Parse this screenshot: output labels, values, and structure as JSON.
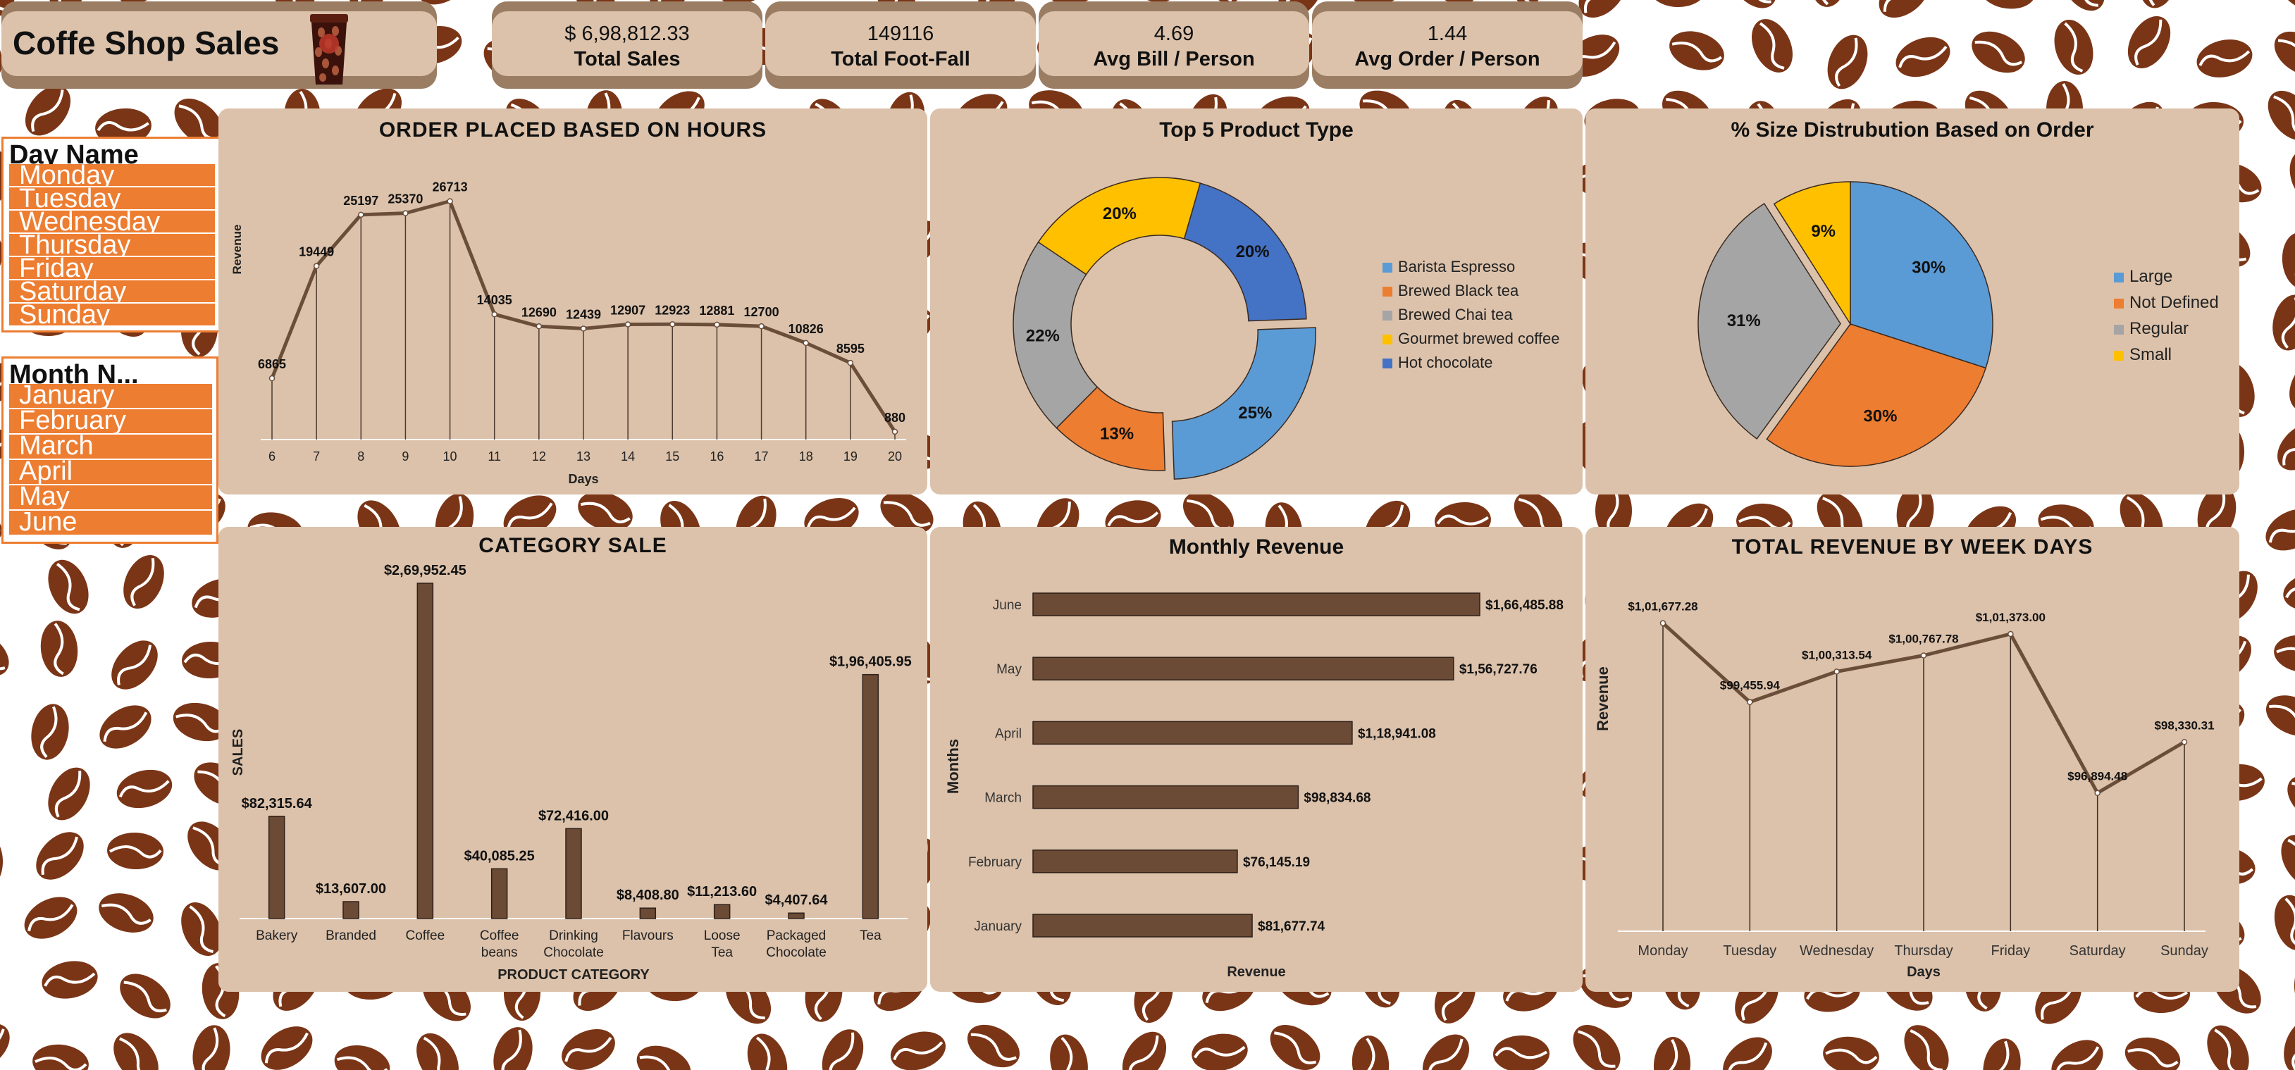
{
  "header": {
    "title": "Coffe Shop Sales"
  },
  "kpis": [
    {
      "value": "$ 6,98,812.33",
      "label": "Total Sales"
    },
    {
      "value": "149116",
      "label": "Total Foot-Fall"
    },
    {
      "value": "4.69",
      "label": "Avg Bill / Person"
    },
    {
      "value": "1.44",
      "label": "Avg Order / Person"
    }
  ],
  "slicers": {
    "day": {
      "header": "Day Name",
      "items": [
        "Monday",
        "Tuesday",
        "Wednesday",
        "Thursday",
        "Friday",
        "Saturday",
        "Sunday"
      ]
    },
    "month": {
      "header": "Month N...",
      "items": [
        "January",
        "February",
        "March",
        "April",
        "May",
        "June"
      ]
    }
  },
  "colors": {
    "accent": "#ed7d31",
    "panel": "#dcc2ab",
    "bean": "#7a3517",
    "line": "#6b4e3a",
    "bar": "#6b4b36"
  },
  "chart_data": [
    {
      "type": "line",
      "title": "ORDER PLACED BASED ON HOURS",
      "xlabel": "Days",
      "ylabel": "Revenue",
      "x": [
        "6",
        "7",
        "8",
        "9",
        "10",
        "11",
        "12",
        "13",
        "14",
        "15",
        "16",
        "17",
        "18",
        "19",
        "20"
      ],
      "values": [
        6865,
        19449,
        25197,
        25370,
        26713,
        14035,
        12690,
        12439,
        12907,
        12923,
        12881,
        12700,
        10826,
        8595,
        880
      ],
      "ylim": [
        0,
        30000
      ]
    },
    {
      "type": "pie",
      "donut": true,
      "title": "Top 5 Product Type",
      "labels": [
        "Barista Espresso",
        "Brewed Black tea",
        "Brewed Chai tea",
        "Gourmet brewed coffee",
        "Hot chocolate"
      ],
      "values": [
        25,
        13,
        22,
        20,
        20
      ],
      "value_labels": [
        "25%",
        "13%",
        "22%",
        "20%",
        "20%"
      ],
      "colors": [
        "#5b9bd5",
        "#ed7d31",
        "#a5a5a5",
        "#ffc000",
        "#4472c4"
      ],
      "legend": "right"
    },
    {
      "type": "pie",
      "title": "% Size Distrubution Based on Order",
      "labels": [
        "Large",
        "Not Defined",
        "Regular",
        "Small"
      ],
      "values": [
        30,
        30,
        31,
        9
      ],
      "value_labels": [
        "30%",
        "30%",
        "31%",
        "9%"
      ],
      "colors": [
        "#5b9bd5",
        "#ed7d31",
        "#a5a5a5",
        "#ffc000"
      ],
      "legend": "right"
    },
    {
      "type": "bar",
      "title": "CATEGORY SALE",
      "xlabel": "PRODUCT CATEGORY",
      "ylabel": "SALES",
      "categories": [
        "Bakery",
        "Branded",
        "Coffee",
        "Coffee beans",
        "Drinking Chocolate",
        "Flavours",
        "Loose Tea",
        "Packaged Chocolate",
        "Tea"
      ],
      "values": [
        82315.64,
        13607.0,
        269952.45,
        40085.25,
        72416.0,
        8408.8,
        11213.6,
        4407.64,
        196405.95
      ],
      "value_labels": [
        "$82,315.64",
        "$13,607.00",
        "$2,69,952.45",
        "$40,085.25",
        "$72,416.00",
        "$8,408.80",
        "$11,213.60",
        "$4,407.64",
        "$1,96,405.95"
      ]
    },
    {
      "type": "bar",
      "orientation": "horizontal",
      "title": "Monthly Revenue",
      "xlabel": "Revenue",
      "ylabel": "Months",
      "categories": [
        "January",
        "February",
        "March",
        "April",
        "May",
        "June"
      ],
      "values": [
        81677.74,
        76145.19,
        98834.68,
        118941.08,
        156727.76,
        166485.88
      ],
      "value_labels": [
        "$81,677.74",
        "$76,145.19",
        "$98,834.68",
        "$1,18,941.08",
        "$1,56,727.76",
        "$1,66,485.88"
      ]
    },
    {
      "type": "line",
      "title": "TOTAL REVENUE BY WEEK DAYS",
      "xlabel": "Days",
      "ylabel": "Revenue",
      "x": [
        "Monday",
        "Tuesday",
        "Wednesday",
        "Thursday",
        "Friday",
        "Saturday",
        "Sunday"
      ],
      "values": [
        101677.28,
        99455.94,
        100313.54,
        100767.78,
        101373.0,
        96894.48,
        98330.31
      ],
      "value_labels": [
        "$1,01,677.28",
        "$99,455.94",
        "$1,00,313.54",
        "$1,00,767.78",
        "$1,01,373.00",
        "$96,894.48",
        "$98,330.31"
      ],
      "ylim": [
        93000,
        103000
      ]
    }
  ]
}
